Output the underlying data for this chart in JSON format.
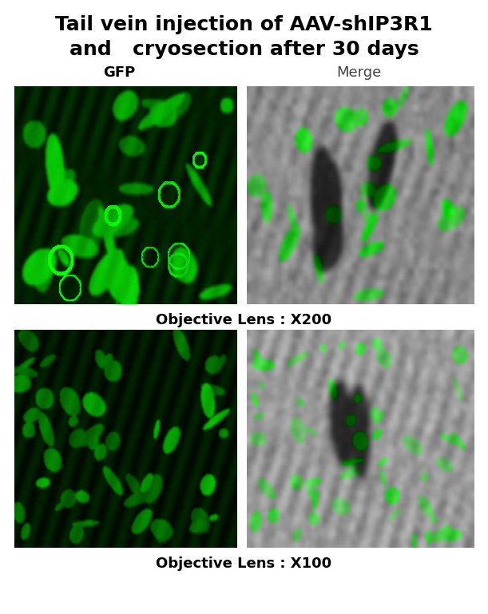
{
  "title_line1": "Tail vein injection of AAV-shIP3R1",
  "title_line2": "and   cryosection after 30 days",
  "label_gfp": "GFP",
  "label_merge": "Merge",
  "caption_top": "Objective Lens : X200",
  "caption_bottom": "Objective Lens : X100",
  "bg_color": "#ffffff",
  "title_color": "#000000",
  "title_fontsize": 18,
  "label_fontsize": 13,
  "caption_fontsize": 13
}
